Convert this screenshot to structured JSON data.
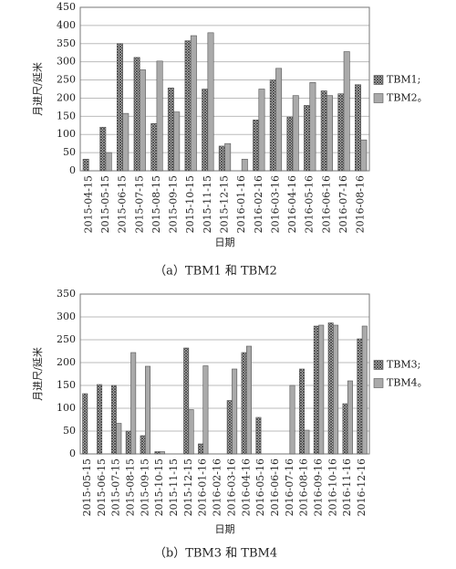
{
  "chart_data": [
    {
      "type": "bar",
      "title": "（a）TBM1 和 TBM2",
      "x_label": "日期",
      "y_label": "月进尺/延米",
      "categories": [
        "2015-04-15",
        "2015-05-15",
        "2015-06-15",
        "2015-07-15",
        "2015-08-15",
        "2015-09-15",
        "2015-10-15",
        "2015-11-15",
        "2015-12-15",
        "2016-01-16",
        "2016-02-16",
        "2016-03-16",
        "2016-04-16",
        "2016-05-16",
        "2016-06-16",
        "2016-07-16",
        "2016-08-16"
      ],
      "series": [
        {
          "name": "TBM1;",
          "color": "#444444",
          "hatch": true,
          "values": [
            32,
            120,
            350,
            312,
            130,
            228,
            358,
            225,
            68,
            null,
            140,
            250,
            148,
            180,
            220,
            212,
            237
          ]
        },
        {
          "name": "TBM2。",
          "color": "#aaaaaa",
          "hatch": false,
          "values": [
            null,
            50,
            158,
            278,
            302,
            162,
            372,
            380,
            75,
            32,
            225,
            282,
            207,
            243,
            207,
            328,
            85
          ]
        }
      ],
      "ylim": [
        0,
        450
      ],
      "yticks": [
        0,
        50,
        100,
        150,
        200,
        250,
        300,
        350,
        400,
        450
      ],
      "grid": true,
      "legend": "right"
    },
    {
      "type": "bar",
      "title": "（b）TBM3 和 TBM4",
      "x_label": "日期",
      "y_label": "月进尺/延米",
      "categories": [
        "2015-05-15",
        "2015-06-15",
        "2015-07-15",
        "2015-08-15",
        "2015-09-15",
        "2015-10-15",
        "2015-11-15",
        "2015-12-15",
        "2016-01-16",
        "2016-02-16",
        "2016-03-16",
        "2016-04-16",
        "2016-05-16",
        "2016-06-16",
        "2016-07-16",
        "2016-08-16",
        "2016-09-16",
        "2016-10-16",
        "2016-11-16",
        "2016-12-16"
      ],
      "series": [
        {
          "name": "TBM3;",
          "color": "#444444",
          "hatch": true,
          "values": [
            132,
            152,
            150,
            50,
            40,
            5,
            null,
            232,
            22,
            null,
            117,
            222,
            80,
            null,
            null,
            186,
            280,
            287,
            110,
            252
          ]
        },
        {
          "name": "TBM4。",
          "color": "#aaaaaa",
          "hatch": false,
          "values": [
            null,
            null,
            67,
            222,
            192,
            5,
            null,
            97,
            193,
            null,
            186,
            236,
            null,
            null,
            150,
            52,
            282,
            282,
            160,
            280
          ]
        }
      ],
      "ylim": [
        0,
        350
      ],
      "yticks": [
        0,
        50,
        100,
        150,
        200,
        250,
        300,
        350
      ],
      "grid": true,
      "legend": "right"
    }
  ]
}
